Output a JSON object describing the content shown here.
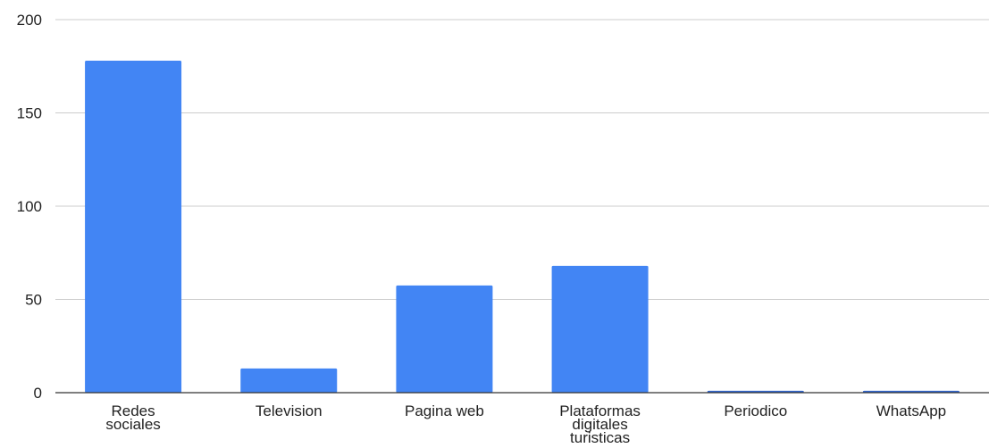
{
  "chart_data": {
    "type": "bar",
    "categories": [
      [
        "Redes",
        "sociales"
      ],
      [
        "Television"
      ],
      [
        "Pagina web"
      ],
      [
        "Plataformas",
        "digitales",
        "turisticas"
      ],
      [
        "Periodico"
      ],
      [
        "WhatsApp"
      ]
    ],
    "values": [
      178,
      13,
      57.5,
      68,
      1,
      1
    ],
    "ylim": [
      0,
      200
    ],
    "yticks": [
      "0",
      "50",
      "100",
      "150",
      "200"
    ],
    "grid": true,
    "bar_color": "#4285F4",
    "small_bar_color": "#3366CC",
    "grid_color": "#CCCCCC",
    "axis_color": "#333333"
  }
}
